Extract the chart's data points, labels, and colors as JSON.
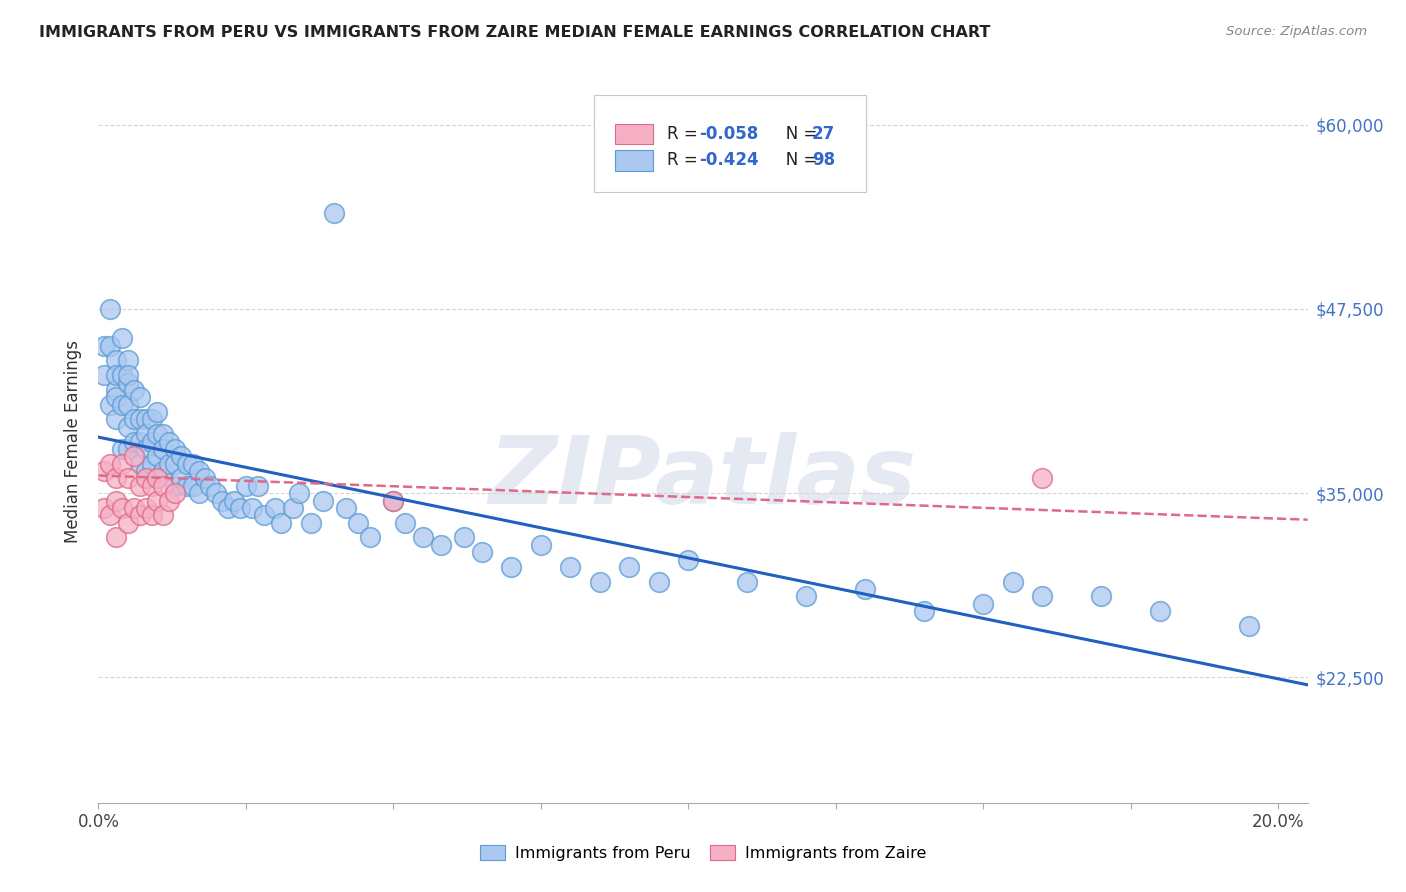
{
  "title": "IMMIGRANTS FROM PERU VS IMMIGRANTS FROM ZAIRE MEDIAN FEMALE EARNINGS CORRELATION CHART",
  "source": "Source: ZipAtlas.com",
  "ylabel": "Median Female Earnings",
  "xlim": [
    0.0,
    0.205
  ],
  "ylim": [
    14000,
    63000
  ],
  "yticks": [
    22500,
    35000,
    47500,
    60000
  ],
  "ytick_labels": [
    "$22,500",
    "$35,000",
    "$47,500",
    "$60,000"
  ],
  "peru_color": "#aac8f0",
  "peru_edge_color": "#5b9bd5",
  "zaire_color": "#f5b0c5",
  "zaire_edge_color": "#e06888",
  "peru_R": "-0.424",
  "peru_N": "98",
  "zaire_R": "-0.058",
  "zaire_N": "27",
  "trend_peru_color": "#2060c0",
  "trend_zaire_color": "#e06888",
  "watermark": "ZIPatlas",
  "peru_trend_x0": 0.0,
  "peru_trend_y0": 38800,
  "peru_trend_x1": 0.205,
  "peru_trend_y1": 22000,
  "zaire_trend_x0": 0.0,
  "zaire_trend_y0": 36200,
  "zaire_trend_x1": 0.205,
  "zaire_trend_y1": 33200,
  "peru_x": [
    0.001,
    0.001,
    0.002,
    0.002,
    0.002,
    0.003,
    0.003,
    0.003,
    0.003,
    0.003,
    0.004,
    0.004,
    0.004,
    0.004,
    0.005,
    0.005,
    0.005,
    0.005,
    0.005,
    0.005,
    0.006,
    0.006,
    0.006,
    0.007,
    0.007,
    0.007,
    0.007,
    0.008,
    0.008,
    0.008,
    0.008,
    0.009,
    0.009,
    0.009,
    0.01,
    0.01,
    0.01,
    0.01,
    0.011,
    0.011,
    0.011,
    0.012,
    0.012,
    0.013,
    0.013,
    0.013,
    0.014,
    0.014,
    0.015,
    0.015,
    0.016,
    0.016,
    0.017,
    0.017,
    0.018,
    0.019,
    0.02,
    0.021,
    0.022,
    0.023,
    0.024,
    0.025,
    0.026,
    0.027,
    0.028,
    0.03,
    0.031,
    0.033,
    0.034,
    0.036,
    0.038,
    0.04,
    0.042,
    0.044,
    0.046,
    0.05,
    0.052,
    0.055,
    0.058,
    0.062,
    0.065,
    0.07,
    0.075,
    0.08,
    0.085,
    0.09,
    0.095,
    0.1,
    0.11,
    0.12,
    0.13,
    0.14,
    0.15,
    0.155,
    0.16,
    0.17,
    0.18,
    0.195
  ],
  "peru_y": [
    45000,
    43000,
    47500,
    45000,
    41000,
    44000,
    42000,
    40000,
    43000,
    41500,
    45500,
    43000,
    41000,
    38000,
    44000,
    42500,
    41000,
    39500,
    38000,
    43000,
    42000,
    40000,
    38500,
    41500,
    40000,
    38500,
    37000,
    40000,
    39000,
    38000,
    36500,
    40000,
    38500,
    37000,
    40500,
    39000,
    37500,
    36000,
    39000,
    38000,
    36500,
    38500,
    37000,
    38000,
    37000,
    35500,
    37500,
    36000,
    37000,
    35500,
    37000,
    35500,
    36500,
    35000,
    36000,
    35500,
    35000,
    34500,
    34000,
    34500,
    34000,
    35500,
    34000,
    35500,
    33500,
    34000,
    33000,
    34000,
    35000,
    33000,
    34500,
    54000,
    34000,
    33000,
    32000,
    34500,
    33000,
    32000,
    31500,
    32000,
    31000,
    30000,
    31500,
    30000,
    29000,
    30000,
    29000,
    30500,
    29000,
    28000,
    28500,
    27000,
    27500,
    29000,
    28000,
    28000,
    27000,
    26000
  ],
  "zaire_x": [
    0.001,
    0.001,
    0.002,
    0.002,
    0.003,
    0.003,
    0.003,
    0.004,
    0.004,
    0.005,
    0.005,
    0.006,
    0.006,
    0.007,
    0.007,
    0.008,
    0.008,
    0.009,
    0.009,
    0.01,
    0.01,
    0.011,
    0.011,
    0.012,
    0.013,
    0.05,
    0.16
  ],
  "zaire_y": [
    36500,
    34000,
    37000,
    33500,
    36000,
    34500,
    32000,
    37000,
    34000,
    36000,
    33000,
    37500,
    34000,
    35500,
    33500,
    36000,
    34000,
    35500,
    33500,
    36000,
    34500,
    35500,
    33500,
    34500,
    35000,
    34500,
    36000
  ]
}
